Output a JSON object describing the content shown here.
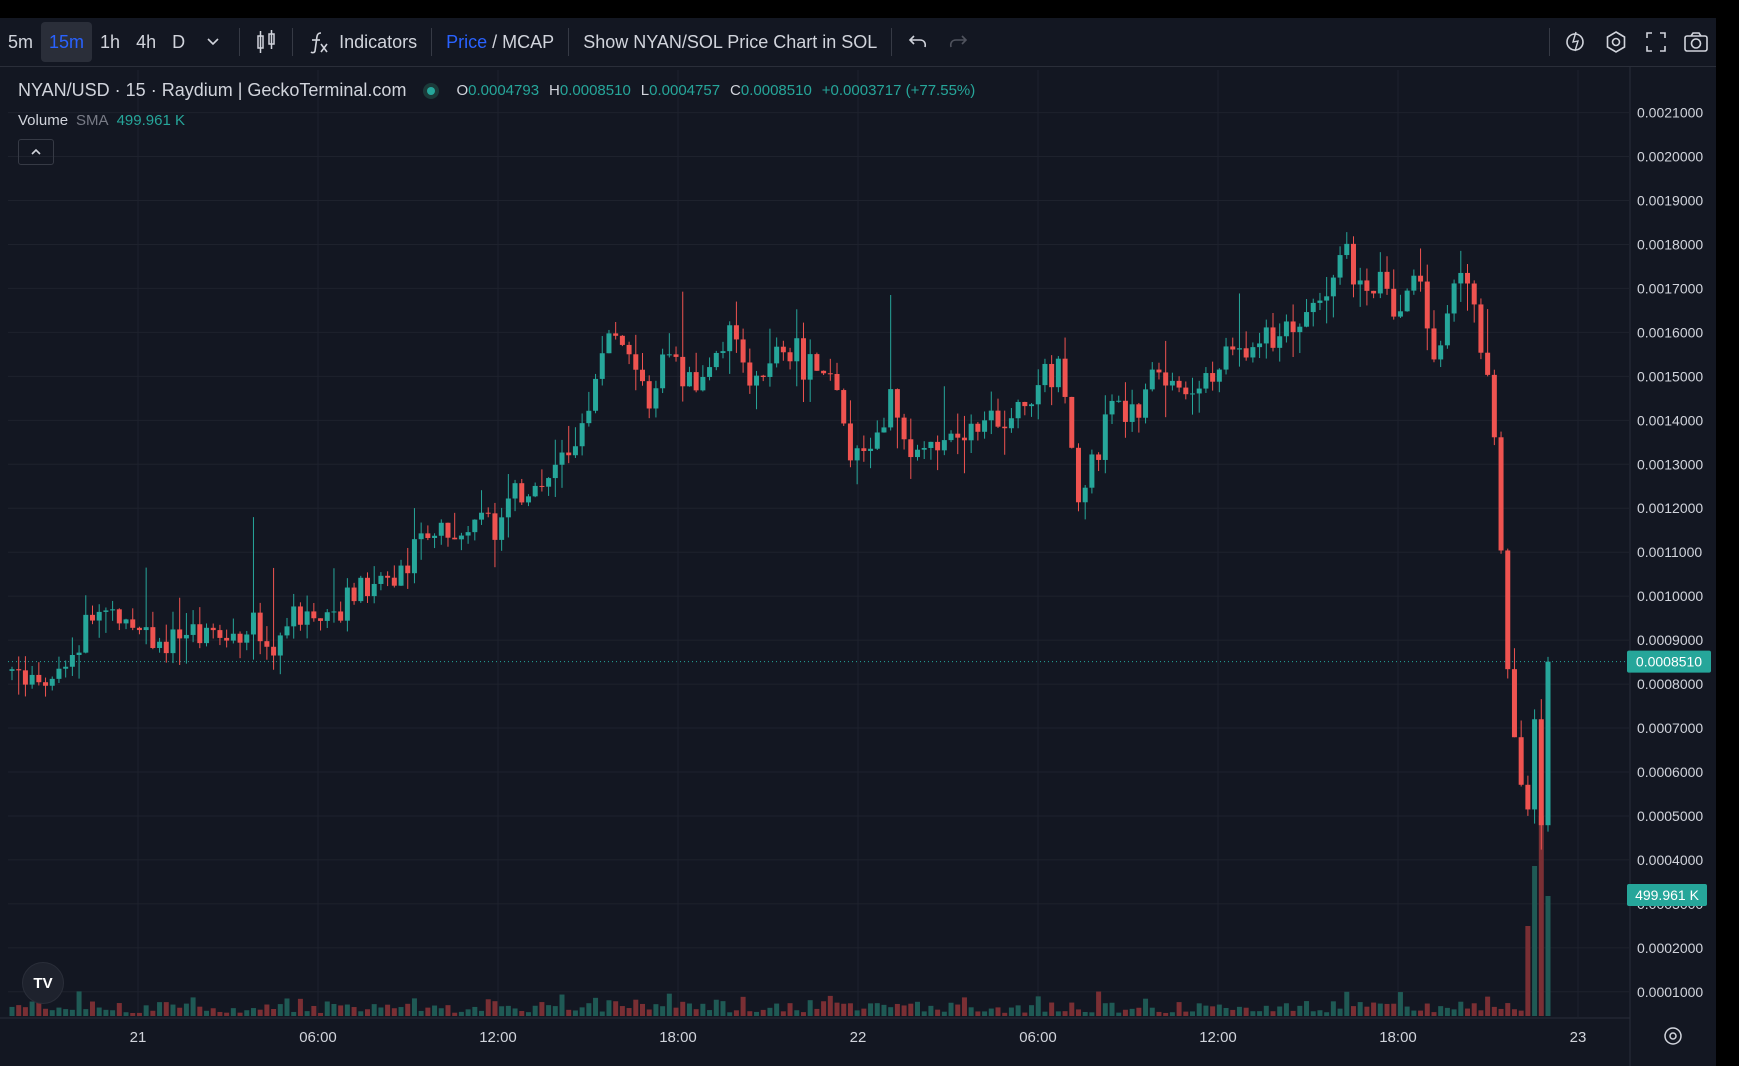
{
  "toolbar": {
    "intervals": [
      "5m",
      "15m",
      "1h",
      "4h",
      "D"
    ],
    "active_interval": "15m",
    "indicators_label": "Indicators",
    "price_label": "Price",
    "price_sep": " / ",
    "mcap_label": "MCAP",
    "sol_toggle_label": "Show NYAN/SOL Price Chart in SOL"
  },
  "legend": {
    "symbol_title": "NYAN/USD · 15 · Raydium | GeckoTerminal.com",
    "o_label": "O",
    "o_value": "0.0004793",
    "h_label": "H",
    "h_value": "0.0008510",
    "l_label": "L",
    "l_value": "0.0004757",
    "c_label": "C",
    "c_value": "0.0008510",
    "change": "+0.0003717 (+77.55%)",
    "volume_label": "Volume",
    "sma_label": "SMA",
    "volume_value": "499.961 K"
  },
  "colors": {
    "up": "#26a69a",
    "down": "#ef5350",
    "bg": "#131722",
    "grid": "#1e222d",
    "accent": "#2962ff"
  },
  "chart_data": {
    "type": "candlestick",
    "y_ticks": [
      "0.0021000",
      "0.0020000",
      "0.0019000",
      "0.0018000",
      "0.0017000",
      "0.0016000",
      "0.0015000",
      "0.0014000",
      "0.0013000",
      "0.0012000",
      "0.0011000",
      "0.0010000",
      "0.0009000",
      "0.0008000",
      "0.0007000",
      "0.0006000",
      "0.0005000",
      "0.0004000",
      "0.0003000",
      "0.0002000",
      "0.0001000"
    ],
    "ylim": [
      7e-05,
      0.00214
    ],
    "x_ticks": [
      "21",
      "06:00",
      "12:00",
      "18:00",
      "22",
      "06:00",
      "12:00",
      "18:00",
      "23"
    ],
    "last_price_label": "0.0008510",
    "last_price": 0.000851,
    "volume_label": "499.961 K",
    "price_path": [
      0.00083,
      0.00081,
      0.00079,
      0.00085,
      0.00094,
      0.00097,
      0.00095,
      0.00092,
      0.00089,
      0.0009,
      0.00092,
      0.00091,
      0.00092,
      0.00092,
      0.00089,
      0.00094,
      0.00096,
      0.00098,
      0.001,
      0.00102,
      0.00104,
      0.00108,
      0.00112,
      0.00115,
      0.00113,
      0.00117,
      0.00118,
      0.00122,
      0.00125,
      0.00128,
      0.00135,
      0.00148,
      0.00162,
      0.00152,
      0.00142,
      0.00158,
      0.00146,
      0.0015,
      0.00158,
      0.00156,
      0.00148,
      0.00157,
      0.00155,
      0.00152,
      0.00145,
      0.00128,
      0.00138,
      0.00145,
      0.0013,
      0.00135,
      0.00138,
      0.00138,
      0.00139,
      0.00137,
      0.00142,
      0.00148,
      0.00154,
      0.0012,
      0.00132,
      0.00148,
      0.0014,
      0.00152,
      0.00148,
      0.00146,
      0.0015,
      0.00156,
      0.00156,
      0.00158,
      0.00162,
      0.00165,
      0.00168,
      0.0018,
      0.00168,
      0.00172,
      0.00162,
      0.00175,
      0.00152,
      0.00172,
      0.00166,
      0.00145,
      0.00072,
      0.00048,
      0.000851
    ]
  },
  "tv_logo": "TV"
}
